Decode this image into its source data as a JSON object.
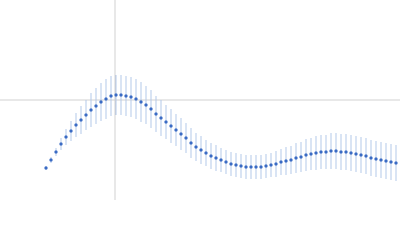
{
  "chart_data": {
    "type": "scatter",
    "x": [
      46,
      51,
      56,
      61,
      66,
      71,
      76,
      81,
      86,
      91,
      96,
      101,
      106,
      111,
      116,
      121,
      126,
      131,
      136,
      141,
      146,
      151,
      156,
      161,
      166,
      171,
      176,
      181,
      186,
      191,
      196,
      201,
      206,
      211,
      216,
      221,
      226,
      231,
      236,
      241,
      246,
      251,
      256,
      261,
      266,
      271,
      276,
      281,
      286,
      291,
      296,
      301,
      306,
      311,
      316,
      321,
      326,
      331,
      336,
      341,
      346,
      351,
      356,
      361,
      366,
      371,
      376,
      381,
      386,
      391,
      396
    ],
    "series": [
      {
        "color": "#3a6bc4",
        "error_color": "#b3c8ea",
        "values": [
          32,
          40,
          48,
          56,
          63,
          69,
          75,
          80,
          85,
          90,
          94,
          98,
          101,
          104,
          105,
          105,
          104,
          103,
          101,
          98,
          95,
          91,
          86,
          82,
          78,
          74,
          70,
          66,
          62,
          57,
          53,
          50,
          47,
          44,
          42,
          40,
          38,
          36,
          35,
          34,
          33,
          33,
          33,
          33,
          34,
          35,
          36,
          38,
          39,
          40,
          42,
          43,
          45,
          46,
          47,
          48,
          48,
          49,
          49,
          48,
          48,
          47,
          46,
          45,
          44,
          42,
          41,
          40,
          39,
          38,
          37
        ],
        "errors": [
          2,
          3,
          4,
          6,
          8,
          10,
          12,
          14,
          15,
          17,
          18,
          19,
          20,
          20,
          20,
          20,
          20,
          20,
          20,
          20,
          19,
          19,
          18,
          18,
          17,
          17,
          16,
          16,
          15,
          15,
          14,
          14,
          13,
          13,
          13,
          12,
          12,
          12,
          12,
          12,
          12,
          12,
          12,
          12,
          12,
          12,
          13,
          13,
          14,
          14,
          15,
          15,
          16,
          16,
          17,
          17,
          17,
          18,
          18,
          18,
          18,
          18,
          18,
          18,
          18,
          18,
          18,
          18,
          18,
          18,
          18
        ]
      }
    ],
    "xlim": [
      0,
      400
    ],
    "ylim": [
      0,
      200
    ],
    "xticks": [
      115
    ],
    "yticks": [
      100
    ],
    "grid": true
  }
}
